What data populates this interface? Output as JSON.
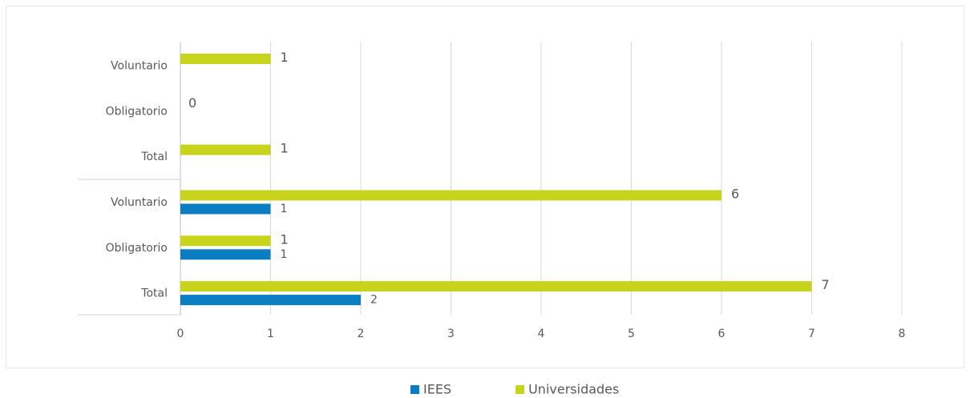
{
  "chart_data": {
    "type": "bar",
    "orientation": "horizontal",
    "categories": [
      "Voluntario",
      "Obligatorio",
      "Total",
      "Voluntario",
      "Obligatorio",
      "Total"
    ],
    "series": [
      {
        "name": "IEES",
        "color": "#0b7dc3",
        "values": [
          null,
          null,
          null,
          1,
          1,
          2
        ]
      },
      {
        "name": "Universidades",
        "color": "#c8d41c",
        "values": [
          1,
          0,
          1,
          6,
          1,
          7
        ]
      }
    ],
    "xlim": [
      0,
      8
    ],
    "xticks": [
      0,
      1,
      2,
      3,
      4,
      5,
      6,
      7,
      8
    ],
    "grid": true,
    "legend": "bottom"
  }
}
